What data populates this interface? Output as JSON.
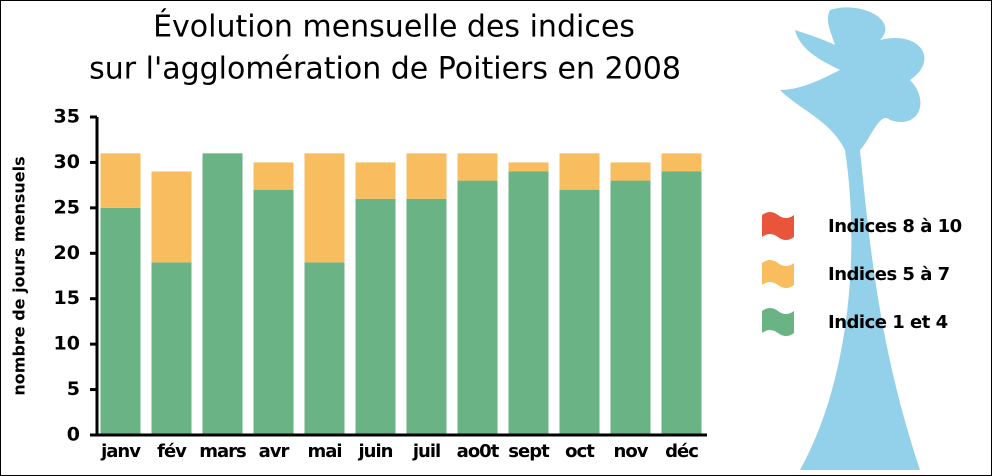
{
  "chart_data": {
    "type": "stacked-bar",
    "title": [
      "Évolution mensuelle des indices",
      "sur l'agglomération de Poitiers en 2008"
    ],
    "y_label": "nombre de jours mensuels",
    "categories": [
      "janv",
      "fév",
      "mars",
      "avr",
      "mai",
      "juin",
      "juil",
      "ao0t",
      "sept",
      "oct",
      "nov",
      "déc"
    ],
    "series": [
      {
        "name": "Indices 8 à 10",
        "color": "#e8553a",
        "values": [
          0,
          0,
          0,
          0,
          0,
          0,
          0,
          0,
          0,
          0,
          0,
          0
        ]
      },
      {
        "name": "Indices 5 à 7",
        "color": "#f7bd5e",
        "values": [
          6,
          10,
          0,
          3,
          12,
          4,
          5,
          3,
          1,
          4,
          2,
          2
        ]
      },
      {
        "name": "Indice 1 et 4",
        "color": "#6ab384",
        "values": [
          25,
          19,
          31,
          27,
          19,
          26,
          26,
          28,
          29,
          27,
          28,
          29
        ]
      }
    ],
    "ylim": [
      0,
      35
    ],
    "yticks": [
      0,
      5,
      10,
      15,
      20,
      25,
      30,
      35
    ],
    "legend": "right"
  }
}
